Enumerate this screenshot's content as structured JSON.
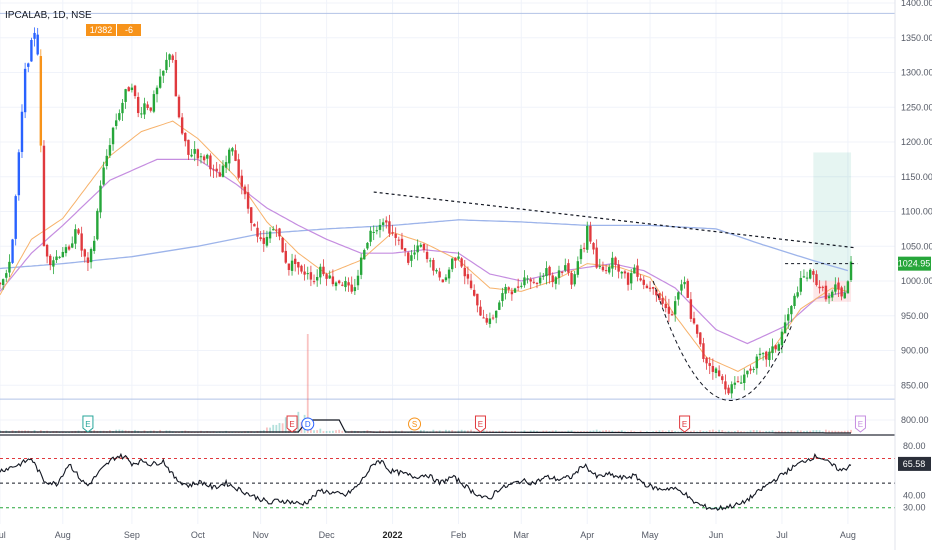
{
  "chart_data": {
    "type": "candlestick",
    "title": "IPCALAB, 1D, NSE",
    "header_badge": {
      "left": "1/382",
      "right": "-6"
    },
    "last_price_label": "1024.95",
    "rsi_label": "65.58",
    "price_axis": {
      "ylim": [
        800,
        1400
      ],
      "ticks": [
        "1400.00",
        "1350.00",
        "1300.00",
        "1250.00",
        "1200.00",
        "1150.00",
        "1100.00",
        "1050.00",
        "1000.00",
        "950.00",
        "900.00",
        "850.00",
        "800.00"
      ]
    },
    "rsi_axis": {
      "ylim": [
        20,
        85
      ],
      "ticks": [
        "80.00",
        "40.00",
        "30.00"
      ],
      "upper_band": 70,
      "mid_band": 50,
      "lower_band": 30
    },
    "x_tick_labels": [
      {
        "label": "Jul",
        "x": 0
      },
      {
        "label": "Aug",
        "x": 20
      },
      {
        "label": "Sep",
        "x": 42
      },
      {
        "label": "Oct",
        "x": 63
      },
      {
        "label": "Nov",
        "x": 83
      },
      {
        "label": "Dec",
        "x": 104
      },
      {
        "label": "2022",
        "x": 125,
        "bold": true
      },
      {
        "label": "Feb",
        "x": 146
      },
      {
        "label": "Mar",
        "x": 166
      },
      {
        "label": "Apr",
        "x": 187
      },
      {
        "label": "May",
        "x": 207
      },
      {
        "label": "Jun",
        "x": 228
      },
      {
        "label": "Jul",
        "x": 249
      },
      {
        "label": "Aug",
        "x": 270
      }
    ],
    "event_markers": [
      {
        "label": "E",
        "x": 28
      },
      {
        "label": "E",
        "x": 93
      },
      {
        "label": "D",
        "x": 98
      },
      {
        "label": "S",
        "x": 132
      },
      {
        "label": "E",
        "x": 153
      },
      {
        "label": "E",
        "x": 218
      },
      {
        "label": "E",
        "x": 274
      }
    ],
    "horizontal_levels": [
      1385,
      830
    ],
    "resistance_trendline": [
      [
        119,
        1128
      ],
      [
        272,
        1048
      ]
    ],
    "neckline": [
      [
        250,
        1025
      ],
      [
        273,
        1025
      ]
    ],
    "cup_curve": [
      [
        208,
        1000
      ],
      [
        230,
        830
      ],
      [
        252,
        935
      ]
    ],
    "long_position": {
      "x_start": 259,
      "x_end": 271,
      "entry": 1000,
      "target": 1185,
      "stop": 970
    },
    "ma_long_anchors": [
      [
        0,
        1018
      ],
      [
        20,
        1025
      ],
      [
        42,
        1035
      ],
      [
        63,
        1050
      ],
      [
        83,
        1068
      ],
      [
        104,
        1075
      ],
      [
        125,
        1080
      ],
      [
        146,
        1088
      ],
      [
        166,
        1085
      ],
      [
        187,
        1080
      ],
      [
        207,
        1080
      ],
      [
        228,
        1075
      ],
      [
        243,
        1052
      ],
      [
        260,
        1028
      ],
      [
        270,
        1015
      ]
    ],
    "ma_mid_anchors": [
      [
        0,
        985
      ],
      [
        10,
        1040
      ],
      [
        20,
        1080
      ],
      [
        35,
        1145
      ],
      [
        50,
        1175
      ],
      [
        63,
        1175
      ],
      [
        75,
        1140
      ],
      [
        85,
        1105
      ],
      [
        95,
        1080
      ],
      [
        104,
        1060
      ],
      [
        115,
        1040
      ],
      [
        125,
        1040
      ],
      [
        135,
        1045
      ],
      [
        146,
        1040
      ],
      [
        156,
        1010
      ],
      [
        166,
        1000
      ],
      [
        180,
        1015
      ],
      [
        195,
        1025
      ],
      [
        205,
        1015
      ],
      [
        215,
        990
      ],
      [
        228,
        930
      ],
      [
        238,
        910
      ],
      [
        250,
        935
      ],
      [
        260,
        975
      ],
      [
        270,
        985
      ]
    ],
    "ma_short_anchors": [
      [
        0,
        980
      ],
      [
        10,
        1060
      ],
      [
        20,
        1090
      ],
      [
        35,
        1180
      ],
      [
        45,
        1215
      ],
      [
        55,
        1230
      ],
      [
        63,
        1205
      ],
      [
        75,
        1150
      ],
      [
        85,
        1085
      ],
      [
        95,
        1040
      ],
      [
        104,
        1010
      ],
      [
        115,
        1030
      ],
      [
        125,
        1070
      ],
      [
        135,
        1055
      ],
      [
        146,
        1030
      ],
      [
        156,
        990
      ],
      [
        166,
        985
      ],
      [
        176,
        1000
      ],
      [
        187,
        1025
      ],
      [
        197,
        1020
      ],
      [
        207,
        1005
      ],
      [
        215,
        950
      ],
      [
        225,
        890
      ],
      [
        235,
        870
      ],
      [
        245,
        895
      ],
      [
        255,
        960
      ],
      [
        265,
        990
      ],
      [
        270,
        985
      ]
    ],
    "price_anchors": [
      [
        0,
        1000
      ],
      [
        2,
        1005
      ],
      [
        4,
        1060
      ],
      [
        6,
        1180
      ],
      [
        8,
        1300
      ],
      [
        10,
        1340
      ],
      [
        11,
        1360
      ],
      [
        12,
        1330
      ],
      [
        14,
        1050
      ],
      [
        16,
        1030
      ],
      [
        18,
        1035
      ],
      [
        20,
        1045
      ],
      [
        22,
        1040
      ],
      [
        24,
        1080
      ],
      [
        26,
        1045
      ],
      [
        28,
        1020
      ],
      [
        30,
        1060
      ],
      [
        32,
        1140
      ],
      [
        34,
        1180
      ],
      [
        36,
        1220
      ],
      [
        38,
        1245
      ],
      [
        40,
        1270
      ],
      [
        42,
        1285
      ],
      [
        44,
        1240
      ],
      [
        46,
        1255
      ],
      [
        48,
        1250
      ],
      [
        50,
        1275
      ],
      [
        52,
        1300
      ],
      [
        54,
        1330
      ],
      [
        55,
        1320
      ],
      [
        56,
        1260
      ],
      [
        58,
        1210
      ],
      [
        60,
        1180
      ],
      [
        62,
        1190
      ],
      [
        64,
        1175
      ],
      [
        66,
        1180
      ],
      [
        68,
        1155
      ],
      [
        70,
        1150
      ],
      [
        72,
        1170
      ],
      [
        74,
        1195
      ],
      [
        76,
        1155
      ],
      [
        78,
        1120
      ],
      [
        80,
        1090
      ],
      [
        82,
        1060
      ],
      [
        84,
        1050
      ],
      [
        86,
        1070
      ],
      [
        88,
        1080
      ],
      [
        90,
        1040
      ],
      [
        92,
        1020
      ],
      [
        94,
        1030
      ],
      [
        96,
        1010
      ],
      [
        98,
        1015
      ],
      [
        100,
        1000
      ],
      [
        102,
        1020
      ],
      [
        104,
        1010
      ],
      [
        106,
        1000
      ],
      [
        108,
        1000
      ],
      [
        110,
        995
      ],
      [
        112,
        980
      ],
      [
        114,
        1010
      ],
      [
        116,
        1050
      ],
      [
        118,
        1070
      ],
      [
        120,
        1080
      ],
      [
        122,
        1090
      ],
      [
        124,
        1075
      ],
      [
        126,
        1060
      ],
      [
        128,
        1050
      ],
      [
        130,
        1030
      ],
      [
        132,
        1040
      ],
      [
        134,
        1050
      ],
      [
        136,
        1030
      ],
      [
        138,
        1020
      ],
      [
        140,
        1000
      ],
      [
        142,
        1005
      ],
      [
        144,
        1030
      ],
      [
        146,
        1040
      ],
      [
        148,
        1010
      ],
      [
        150,
        990
      ],
      [
        152,
        960
      ],
      [
        154,
        950
      ],
      [
        156,
        940
      ],
      [
        158,
        960
      ],
      [
        160,
        980
      ],
      [
        162,
        990
      ],
      [
        164,
        985
      ],
      [
        166,
        1000
      ],
      [
        168,
        1010
      ],
      [
        170,
        995
      ],
      [
        172,
        1005
      ],
      [
        174,
        1020
      ],
      [
        176,
        1000
      ],
      [
        178,
        1015
      ],
      [
        180,
        1020
      ],
      [
        182,
        1000
      ],
      [
        184,
        1030
      ],
      [
        186,
        1050
      ],
      [
        187,
        1080
      ],
      [
        188,
        1060
      ],
      [
        190,
        1020
      ],
      [
        192,
        1015
      ],
      [
        194,
        1025
      ],
      [
        196,
        1030
      ],
      [
        198,
        1010
      ],
      [
        200,
        1000
      ],
      [
        202,
        1020
      ],
      [
        204,
        1005
      ],
      [
        206,
        990
      ],
      [
        208,
        995
      ],
      [
        210,
        975
      ],
      [
        212,
        960
      ],
      [
        214,
        955
      ],
      [
        216,
        985
      ],
      [
        218,
        995
      ],
      [
        220,
        950
      ],
      [
        222,
        920
      ],
      [
        224,
        890
      ],
      [
        226,
        880
      ],
      [
        228,
        870
      ],
      [
        230,
        855
      ],
      [
        232,
        845
      ],
      [
        234,
        850
      ],
      [
        236,
        860
      ],
      [
        238,
        870
      ],
      [
        240,
        880
      ],
      [
        242,
        890
      ],
      [
        244,
        890
      ],
      [
        246,
        900
      ],
      [
        248,
        910
      ],
      [
        250,
        940
      ],
      [
        252,
        960
      ],
      [
        254,
        990
      ],
      [
        256,
        1005
      ],
      [
        258,
        1010
      ],
      [
        260,
        1000
      ],
      [
        262,
        985
      ],
      [
        264,
        975
      ],
      [
        266,
        990
      ],
      [
        268,
        975
      ],
      [
        270,
        1000
      ],
      [
        271,
        1025
      ]
    ],
    "rsi_anchors": [
      [
        0,
        60
      ],
      [
        6,
        65
      ],
      [
        10,
        70
      ],
      [
        14,
        52
      ],
      [
        18,
        49
      ],
      [
        22,
        66
      ],
      [
        26,
        52
      ],
      [
        28,
        48
      ],
      [
        32,
        60
      ],
      [
        36,
        70
      ],
      [
        38,
        72
      ],
      [
        40,
        71
      ],
      [
        42,
        66
      ],
      [
        46,
        68
      ],
      [
        48,
        65
      ],
      [
        52,
        68
      ],
      [
        56,
        53
      ],
      [
        60,
        48
      ],
      [
        64,
        51
      ],
      [
        68,
        46
      ],
      [
        72,
        50
      ],
      [
        76,
        45
      ],
      [
        80,
        40
      ],
      [
        84,
        36
      ],
      [
        86,
        33
      ],
      [
        88,
        36
      ],
      [
        92,
        35
      ],
      [
        96,
        33
      ],
      [
        98,
        35
      ],
      [
        102,
        44
      ],
      [
        106,
        42
      ],
      [
        110,
        40
      ],
      [
        114,
        48
      ],
      [
        118,
        62
      ],
      [
        120,
        68
      ],
      [
        122,
        67
      ],
      [
        124,
        60
      ],
      [
        128,
        58
      ],
      [
        132,
        55
      ],
      [
        136,
        57
      ],
      [
        140,
        50
      ],
      [
        144,
        55
      ],
      [
        146,
        52
      ],
      [
        150,
        44
      ],
      [
        154,
        38
      ],
      [
        156,
        37
      ],
      [
        158,
        44
      ],
      [
        162,
        48
      ],
      [
        166,
        52
      ],
      [
        170,
        50
      ],
      [
        174,
        55
      ],
      [
        178,
        53
      ],
      [
        182,
        55
      ],
      [
        186,
        65
      ],
      [
        188,
        60
      ],
      [
        190,
        55
      ],
      [
        194,
        57
      ],
      [
        198,
        54
      ],
      [
        202,
        56
      ],
      [
        206,
        48
      ],
      [
        210,
        45
      ],
      [
        214,
        46
      ],
      [
        218,
        42
      ],
      [
        220,
        36
      ],
      [
        224,
        31
      ],
      [
        228,
        29
      ],
      [
        232,
        31
      ],
      [
        236,
        33
      ],
      [
        240,
        40
      ],
      [
        244,
        48
      ],
      [
        248,
        55
      ],
      [
        252,
        62
      ],
      [
        256,
        68
      ],
      [
        260,
        72
      ],
      [
        262,
        70
      ],
      [
        264,
        66
      ],
      [
        266,
        63
      ],
      [
        268,
        60
      ],
      [
        270,
        63
      ],
      [
        271,
        66
      ]
    ],
    "volume_anchors": [
      [
        0,
        3
      ],
      [
        20,
        2
      ],
      [
        42,
        3
      ],
      [
        63,
        2
      ],
      [
        83,
        2
      ],
      [
        98,
        22
      ],
      [
        100,
        4
      ],
      [
        104,
        3
      ],
      [
        125,
        2
      ],
      [
        146,
        3
      ],
      [
        166,
        2
      ],
      [
        187,
        3
      ],
      [
        207,
        2
      ],
      [
        228,
        3
      ],
      [
        249,
        2
      ],
      [
        270,
        3
      ]
    ]
  }
}
